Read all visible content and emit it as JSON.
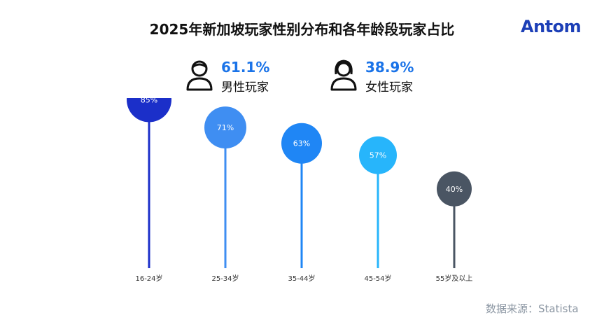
{
  "title": "2025年新加坡玩家性别分布和各年龄段玩家占比",
  "logo": "Antom",
  "gender": {
    "male": {
      "percent": "61.1%",
      "label": "男性玩家"
    },
    "female": {
      "percent": "38.9%",
      "label": "女性玩家"
    }
  },
  "chart_data": {
    "type": "lollipop",
    "categories": [
      "16-24岁",
      "25-34岁",
      "35-44岁",
      "45-54岁",
      "55岁及以上"
    ],
    "values": [
      85,
      71,
      63,
      57,
      40
    ],
    "value_labels": [
      "85%",
      "71%",
      "63%",
      "57%",
      "40%"
    ],
    "colors": [
      "#1b2fc9",
      "#3f8ef2",
      "#1f86f5",
      "#27b5fb",
      "#4a5563"
    ],
    "stem_colors": [
      "#1b2fc9",
      "#3f8ef2",
      "#1f86f5",
      "#27b5fb",
      "#4a5563"
    ],
    "ylim": [
      0,
      100
    ],
    "grid": false
  },
  "source": "数据来源：Statista"
}
